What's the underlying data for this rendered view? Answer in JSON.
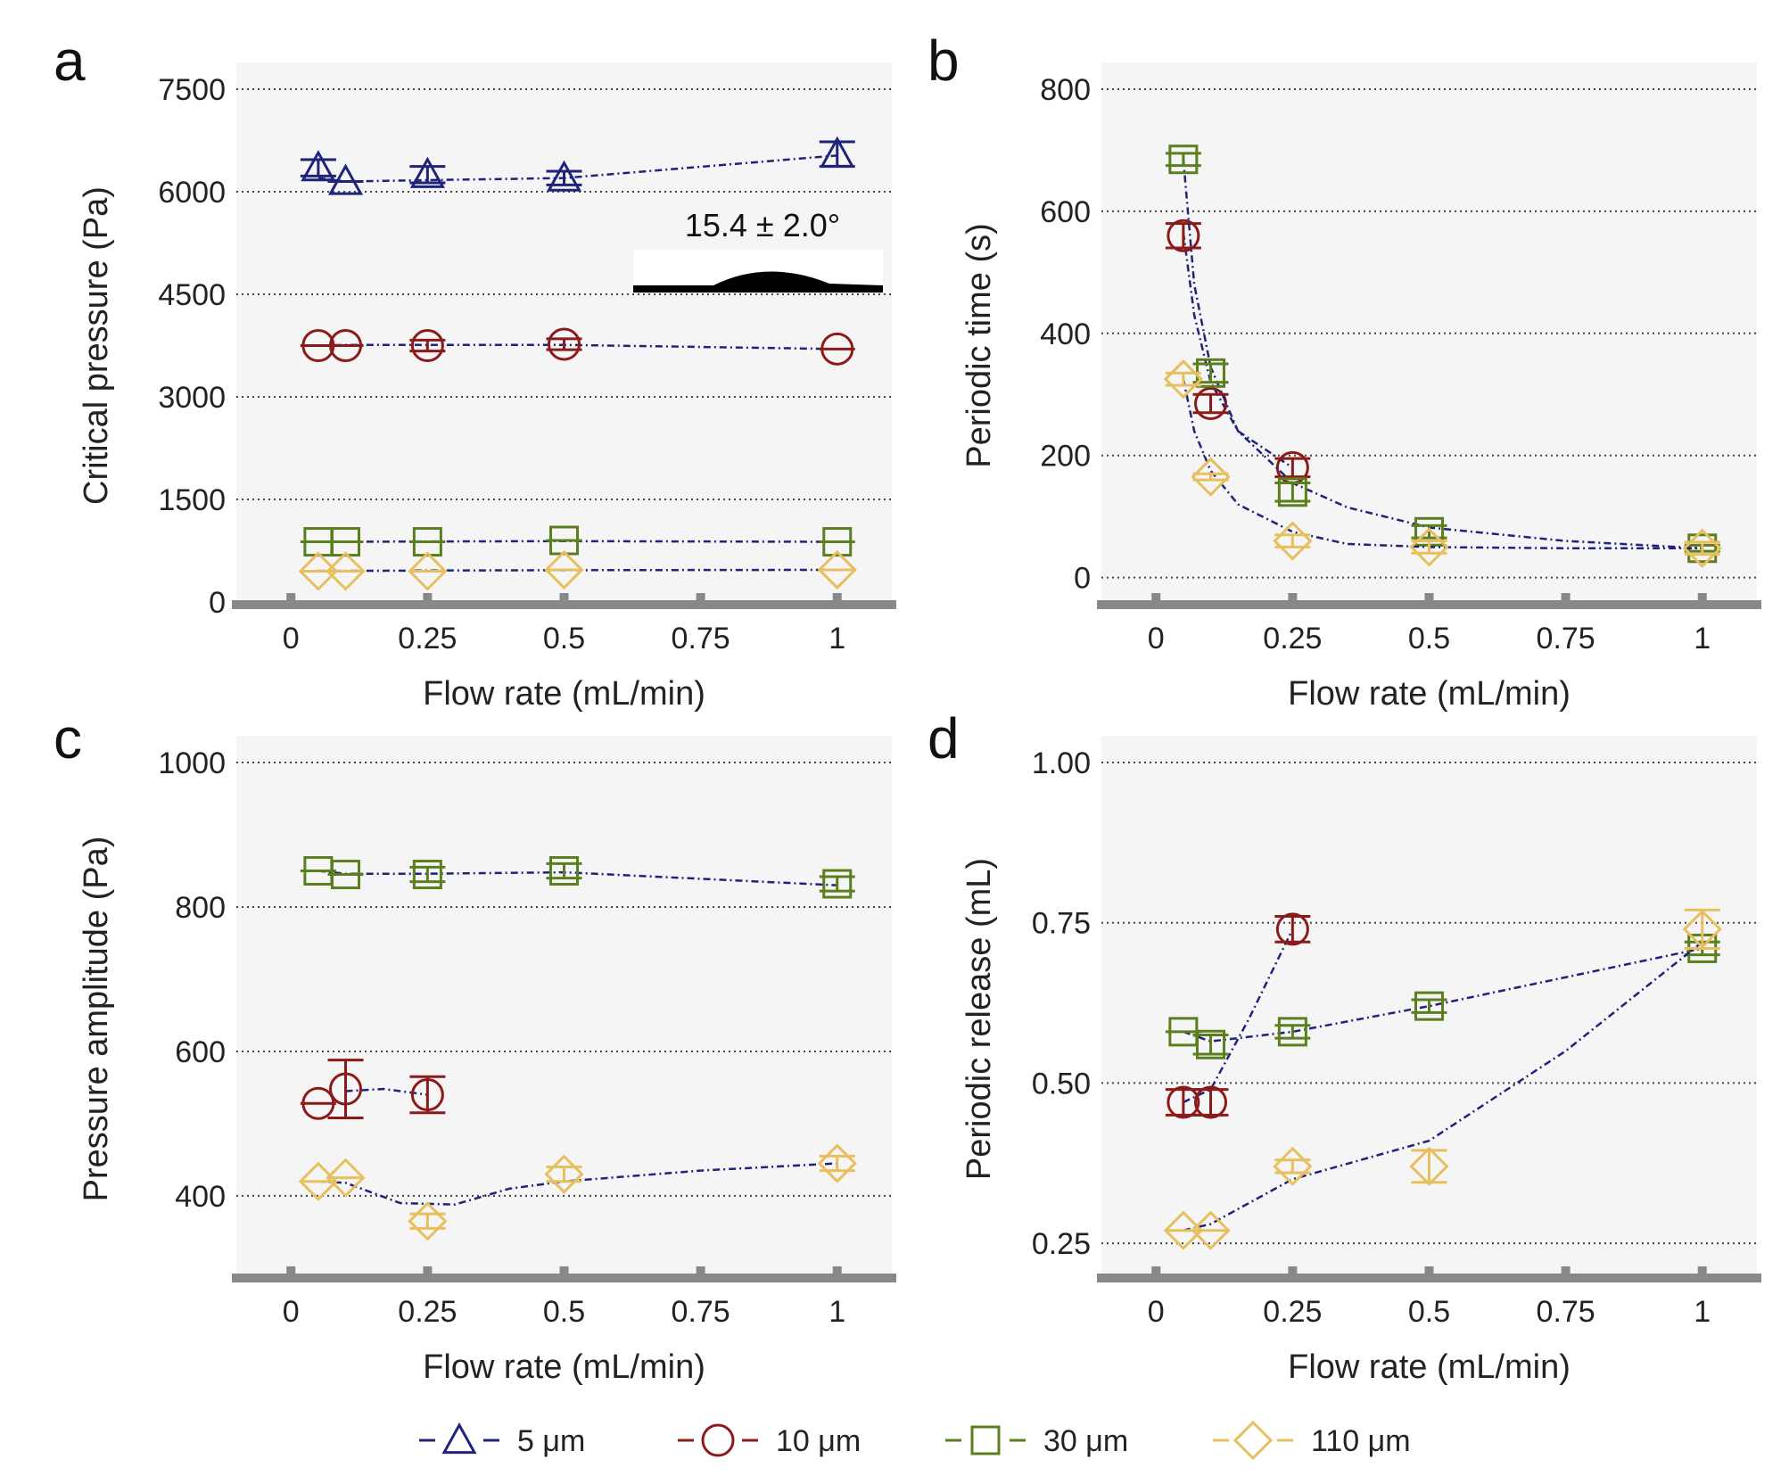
{
  "colors": {
    "5um": "#1f237a",
    "10um": "#8b1a1a",
    "30um": "#5b7f1e",
    "110um": "#e8bf5e",
    "fit_line": "#1f237a",
    "plot_bg": "#f5f5f5",
    "axis_bar": "#888888",
    "grid": "#444444"
  },
  "legend": {
    "items": [
      {
        "key": "5um",
        "label": "5 μm",
        "marker": "triangle",
        "glyph": "-△-"
      },
      {
        "key": "10um",
        "label": "10 μm",
        "marker": "circle",
        "glyph": "-○-"
      },
      {
        "key": "30um",
        "label": "30 μm",
        "marker": "square",
        "glyph": "-□-"
      },
      {
        "key": "110um",
        "label": "110 μm",
        "marker": "diamond",
        "glyph": "-◇-"
      }
    ]
  },
  "chart_data": [
    {
      "panel": "a",
      "type": "scatter",
      "xlabel": "Flow rate (mL/min)",
      "ylabel": "Critical pressure (Pa)",
      "xticks": [
        "0",
        "0.25",
        "0.5",
        "0.75",
        "1"
      ],
      "xtick_values": [
        0,
        0.25,
        0.5,
        0.75,
        1
      ],
      "yticks": [
        "0",
        "1500",
        "3000",
        "4500",
        "6000",
        "7500"
      ],
      "ytick_values": [
        0,
        1500,
        3000,
        4500,
        6000,
        7500
      ],
      "ylim": [
        0,
        7500
      ],
      "xlim": [
        -0.1,
        1.1
      ],
      "inset_label": "15.4 ± 2.0°",
      "series": [
        {
          "key": "5um",
          "x": [
            0.05,
            0.1,
            0.25,
            0.5,
            1
          ],
          "y": [
            6350,
            6150,
            6250,
            6200,
            6550
          ],
          "err": [
            120,
            0,
            120,
            100,
            180
          ],
          "fit": [
            [
              0.05,
              6200
            ],
            [
              0.1,
              6150
            ],
            [
              0.25,
              6170
            ],
            [
              0.5,
              6200
            ],
            [
              1,
              6530
            ]
          ]
        },
        {
          "key": "10um",
          "x": [
            0.05,
            0.1,
            0.25,
            0.5,
            1
          ],
          "y": [
            3750,
            3750,
            3750,
            3770,
            3700
          ],
          "err": [
            0,
            0,
            80,
            80,
            0
          ],
          "fit": [
            [
              0.05,
              3750
            ],
            [
              0.1,
              3760
            ],
            [
              0.25,
              3760
            ],
            [
              0.5,
              3760
            ],
            [
              1,
              3700
            ]
          ]
        },
        {
          "key": "30um",
          "x": [
            0.05,
            0.1,
            0.25,
            0.5,
            1
          ],
          "y": [
            880,
            880,
            880,
            900,
            880
          ],
          "err": [
            0,
            0,
            0,
            0,
            0
          ],
          "fit": [
            [
              0.05,
              880
            ],
            [
              0.1,
              880
            ],
            [
              0.25,
              885
            ],
            [
              0.5,
              890
            ],
            [
              1,
              880
            ]
          ]
        },
        {
          "key": "110um",
          "x": [
            0.05,
            0.1,
            0.25,
            0.5,
            1
          ],
          "y": [
            450,
            450,
            450,
            470,
            470
          ],
          "err": [
            0,
            0,
            0,
            0,
            0
          ],
          "fit": [
            [
              0.05,
              455
            ],
            [
              0.1,
              455
            ],
            [
              0.25,
              460
            ],
            [
              0.5,
              465
            ],
            [
              1,
              470
            ]
          ]
        }
      ]
    },
    {
      "panel": "b",
      "type": "scatter",
      "xlabel": "Flow rate (mL/min)",
      "ylabel": "Periodic time (s)",
      "xticks": [
        "0",
        "0.25",
        "0.5",
        "0.75",
        "1"
      ],
      "xtick_values": [
        0,
        0.25,
        0.5,
        0.75,
        1
      ],
      "yticks": [
        "0",
        "200",
        "400",
        "600",
        "800"
      ],
      "ytick_values": [
        0,
        200,
        400,
        600,
        800
      ],
      "ylim": [
        -40,
        800
      ],
      "xlim": [
        -0.1,
        1.1
      ],
      "series": [
        {
          "key": "5um",
          "x": [],
          "y": [],
          "err": [],
          "fit": []
        },
        {
          "key": "10um",
          "x": [
            0.05,
            0.1,
            0.25
          ],
          "y": [
            560,
            285,
            180
          ],
          "err": [
            20,
            15,
            15
          ],
          "fit": [
            [
              0.05,
              565
            ],
            [
              0.07,
              430
            ],
            [
              0.1,
              320
            ],
            [
              0.15,
              240
            ],
            [
              0.25,
              180
            ]
          ]
        },
        {
          "key": "30um",
          "x": [
            0.05,
            0.1,
            0.25,
            0.5,
            1
          ],
          "y": [
            685,
            335,
            140,
            75,
            48
          ],
          "err": [
            10,
            15,
            15,
            10,
            5
          ],
          "fit": [
            [
              0.05,
              685
            ],
            [
              0.07,
              480
            ],
            [
              0.1,
              345
            ],
            [
              0.15,
              240
            ],
            [
              0.25,
              155
            ],
            [
              0.35,
              115
            ],
            [
              0.5,
              82
            ],
            [
              0.75,
              60
            ],
            [
              1,
              48
            ]
          ]
        },
        {
          "key": "110um",
          "x": [
            0.05,
            0.1,
            0.25,
            0.5,
            1
          ],
          "y": [
            325,
            165,
            60,
            50,
            48
          ],
          "err": [
            10,
            5,
            10,
            10,
            10
          ],
          "fit": [
            [
              0.05,
              325
            ],
            [
              0.07,
              240
            ],
            [
              0.1,
              175
            ],
            [
              0.15,
              120
            ],
            [
              0.25,
              75
            ],
            [
              0.35,
              55
            ],
            [
              0.5,
              50
            ],
            [
              0.75,
              48
            ],
            [
              1,
              48
            ]
          ]
        }
      ]
    },
    {
      "panel": "c",
      "type": "scatter",
      "xlabel": "Flow rate (mL/min)",
      "ylabel": "Pressure amplitude (Pa)",
      "xticks": [
        "0",
        "0.25",
        "0.5",
        "0.75",
        "1"
      ],
      "xtick_values": [
        0,
        0.25,
        0.5,
        0.75,
        1
      ],
      "yticks": [
        "400",
        "600",
        "800",
        "1000"
      ],
      "ytick_values": [
        400,
        600,
        800,
        1000
      ],
      "ylim": [
        290,
        1000
      ],
      "xlim": [
        -0.1,
        1.1
      ],
      "series": [
        {
          "key": "5um",
          "x": [],
          "y": [],
          "err": [],
          "fit": []
        },
        {
          "key": "10um",
          "x": [
            0.05,
            0.1,
            0.25
          ],
          "y": [
            528,
            548,
            540
          ],
          "err": [
            0,
            40,
            25
          ],
          "fit": [
            [
              0.1,
              545
            ],
            [
              0.17,
              548
            ],
            [
              0.25,
              540
            ]
          ]
        },
        {
          "key": "30um",
          "x": [
            0.05,
            0.1,
            0.25,
            0.5,
            1
          ],
          "y": [
            850,
            845,
            845,
            850,
            832
          ],
          "err": [
            0,
            0,
            10,
            10,
            10
          ],
          "fit": [
            [
              0.05,
              850
            ],
            [
              0.1,
              846
            ],
            [
              0.25,
              846
            ],
            [
              0.5,
              848
            ],
            [
              1,
              830
            ]
          ]
        },
        {
          "key": "110um",
          "x": [
            0.05,
            0.1,
            0.25,
            0.5,
            1
          ],
          "y": [
            420,
            425,
            365,
            430,
            445
          ],
          "err": [
            0,
            0,
            10,
            10,
            10
          ],
          "fit": [
            [
              0.05,
              420
            ],
            [
              0.1,
              418
            ],
            [
              0.2,
              390
            ],
            [
              0.3,
              388
            ],
            [
              0.4,
              410
            ],
            [
              0.5,
              420
            ],
            [
              0.75,
              435
            ],
            [
              1,
              445
            ]
          ]
        }
      ]
    },
    {
      "panel": "d",
      "type": "scatter",
      "xlabel": "Flow rate (mL/min)",
      "ylabel": "Periodic release (mL)",
      "xticks": [
        "0",
        "0.25",
        "0.5",
        "0.75",
        "1"
      ],
      "xtick_values": [
        0,
        0.25,
        0.5,
        0.75,
        1
      ],
      "yticks": [
        "0.25",
        "0.50",
        "0.75",
        "1.00"
      ],
      "ytick_values": [
        0.25,
        0.5,
        0.75,
        1.0
      ],
      "ylim": [
        0.2,
        1.0
      ],
      "xlim": [
        -0.1,
        1.1
      ],
      "series": [
        {
          "key": "5um",
          "x": [],
          "y": [],
          "err": [],
          "fit": []
        },
        {
          "key": "10um",
          "x": [
            0.05,
            0.1,
            0.25
          ],
          "y": [
            0.47,
            0.47,
            0.74
          ],
          "err": [
            0.02,
            0.02,
            0.02
          ],
          "fit": [
            [
              0.05,
              0.47
            ],
            [
              0.1,
              0.49
            ],
            [
              0.17,
              0.6
            ],
            [
              0.25,
              0.74
            ]
          ]
        },
        {
          "key": "30um",
          "x": [
            0.05,
            0.1,
            0.25,
            0.5,
            1
          ],
          "y": [
            0.58,
            0.56,
            0.58,
            0.62,
            0.71
          ],
          "err": [
            0,
            0.015,
            0.01,
            0.01,
            0.01
          ],
          "fit": [
            [
              0.05,
              0.58
            ],
            [
              0.1,
              0.565
            ],
            [
              0.25,
              0.58
            ],
            [
              0.5,
              0.62
            ],
            [
              1,
              0.71
            ]
          ]
        },
        {
          "key": "110um",
          "x": [
            0.05,
            0.1,
            0.25,
            0.5,
            1
          ],
          "y": [
            0.27,
            0.27,
            0.37,
            0.37,
            0.74
          ],
          "err": [
            0,
            0,
            0.01,
            0.025,
            0.03
          ],
          "fit": [
            [
              0.05,
              0.27
            ],
            [
              0.1,
              0.28
            ],
            [
              0.25,
              0.35
            ],
            [
              0.5,
              0.41
            ],
            [
              0.75,
              0.55
            ],
            [
              1,
              0.72
            ]
          ]
        }
      ]
    }
  ]
}
